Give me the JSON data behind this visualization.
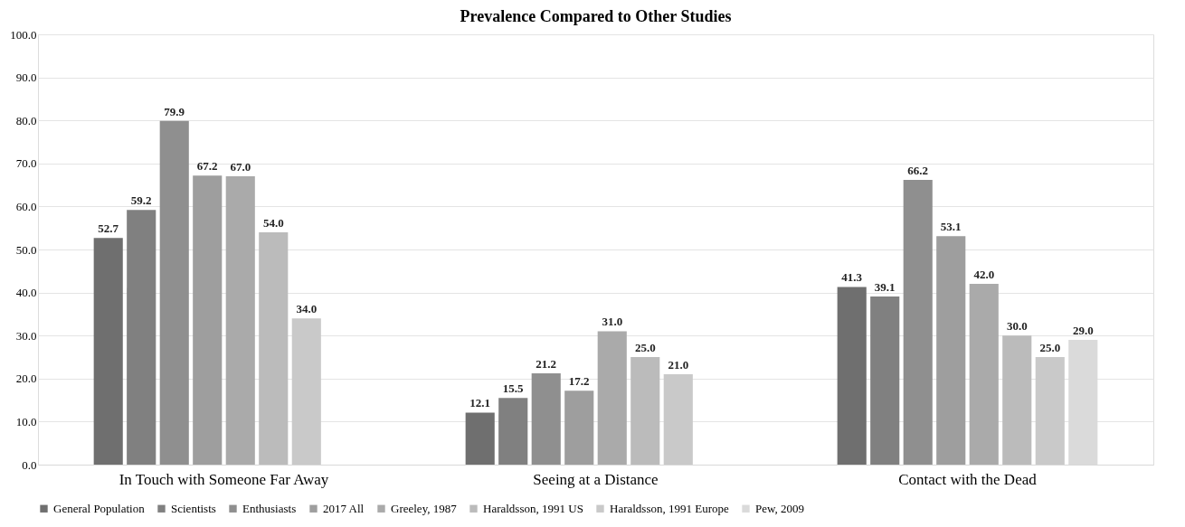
{
  "chart_data": {
    "type": "bar",
    "title": "Prevalence Compared to Other Studies",
    "categories": [
      "In Touch with Someone Far Away",
      "Seeing at a Distance",
      "Contact with the Dead"
    ],
    "series": [
      {
        "name": "General Population",
        "color": "#6f6f6f",
        "values": [
          52.7,
          12.1,
          41.3
        ],
        "value_labels": [
          "52.7",
          "12.1",
          "41.3"
        ]
      },
      {
        "name": "Scientists",
        "color": "#808080",
        "values": [
          59.2,
          15.5,
          39.1
        ],
        "value_labels": [
          "59.2",
          "15.5",
          "39.1"
        ]
      },
      {
        "name": "Enthusiasts",
        "color": "#8f8f8f",
        "values": [
          79.9,
          21.2,
          66.2
        ],
        "value_labels": [
          "79.9",
          "21.2",
          "66.2"
        ]
      },
      {
        "name": "2017 All",
        "color": "#9e9e9e",
        "values": [
          67.2,
          17.2,
          53.1
        ],
        "value_labels": [
          "67.2",
          "17.2",
          "53.1"
        ]
      },
      {
        "name": "Greeley, 1987",
        "color": "#aaaaaa",
        "values": [
          67.0,
          31.0,
          42.0
        ],
        "value_labels": [
          "67.0",
          "31.0",
          "42.0"
        ]
      },
      {
        "name": "Haraldsson, 1991 US",
        "color": "#bbbbbb",
        "values": [
          54.0,
          25.0,
          30.0
        ],
        "value_labels": [
          "54.0",
          "25.0",
          "30.0"
        ]
      },
      {
        "name": "Haraldsson, 1991 Europe",
        "color": "#c9c9c9",
        "values": [
          34.0,
          21.0,
          25.0
        ],
        "value_labels": [
          "34.0",
          "21.0",
          "25.0"
        ]
      },
      {
        "name": "Pew, 2009",
        "color": "#dadada",
        "values": [
          null,
          null,
          29.0
        ],
        "value_labels": [
          null,
          null,
          "29.0"
        ]
      }
    ],
    "ylim": [
      0,
      100
    ],
    "yticks": [
      {
        "value": 0,
        "label": "0.0"
      },
      {
        "value": 10,
        "label": "10.0"
      },
      {
        "value": 20,
        "label": "20.0"
      },
      {
        "value": 30,
        "label": "30.0"
      },
      {
        "value": 40,
        "label": "40.0"
      },
      {
        "value": 50,
        "label": "50.0"
      },
      {
        "value": 60,
        "label": "60.0"
      },
      {
        "value": 70,
        "label": "70.0"
      },
      {
        "value": 80,
        "label": "80.0"
      },
      {
        "value": 90,
        "label": "90.0"
      },
      {
        "value": 100,
        "label": "100.0"
      }
    ],
    "grid": "y",
    "legend": "bottom"
  }
}
